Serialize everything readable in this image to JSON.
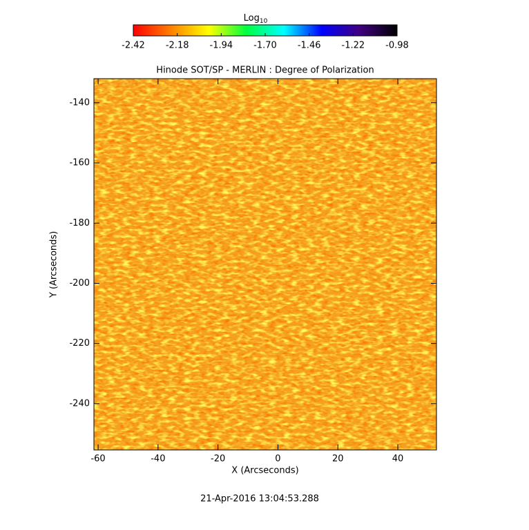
{
  "chart_data": {
    "type": "heatmap",
    "title": "Hinode SOT/SP - MERLIN : Degree of Polarization",
    "x_label": "X (Arcseconds)",
    "y_label": "Y (Arcseconds)",
    "footer": "21-Apr-2016 13:04:53.288",
    "colorbar_label": "Log",
    "colorbar_label_sub": "10",
    "colormap": [
      "#ff0000",
      "#ff8000",
      "#ffff00",
      "#00ff40",
      "#00ffff",
      "#0000ff",
      "#400080",
      "#000000"
    ],
    "clim": [
      -2.42,
      -0.98
    ],
    "cticks": [
      {
        "value": -2.42,
        "label": "-2.42"
      },
      {
        "value": -2.18,
        "label": "-2.18"
      },
      {
        "value": -1.94,
        "label": "-1.94"
      },
      {
        "value": -1.7,
        "label": "-1.70"
      },
      {
        "value": -1.46,
        "label": "-1.46"
      },
      {
        "value": -1.22,
        "label": "-1.22"
      },
      {
        "value": -0.98,
        "label": "-0.98"
      }
    ],
    "xlim": [
      -61.4,
      52.9
    ],
    "xticks": [
      -60,
      -40,
      -20,
      0,
      20,
      40
    ],
    "ylim": [
      -255.4,
      -132
    ],
    "yticks": [
      -240,
      -220,
      -200,
      -180,
      -160,
      -140
    ]
  }
}
